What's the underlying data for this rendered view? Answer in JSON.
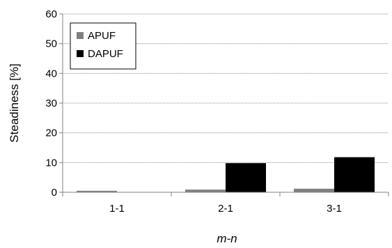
{
  "chart_data": {
    "type": "bar",
    "categories": [
      "1-1",
      "2-1",
      "3-1"
    ],
    "series": [
      {
        "name": "APUF",
        "values": [
          0.5,
          0.9,
          1.2
        ],
        "color": "#808080"
      },
      {
        "name": "DAPUF",
        "values": [
          0,
          9.8,
          11.8
        ],
        "color": "#000000"
      }
    ],
    "xlabel": "m-n",
    "ylabel": "Steadiness [%]",
    "ylim": [
      0,
      60
    ],
    "yticks": [
      0,
      10,
      20,
      30,
      40,
      50,
      60
    ],
    "grid": true,
    "legend_position": "top-left"
  }
}
